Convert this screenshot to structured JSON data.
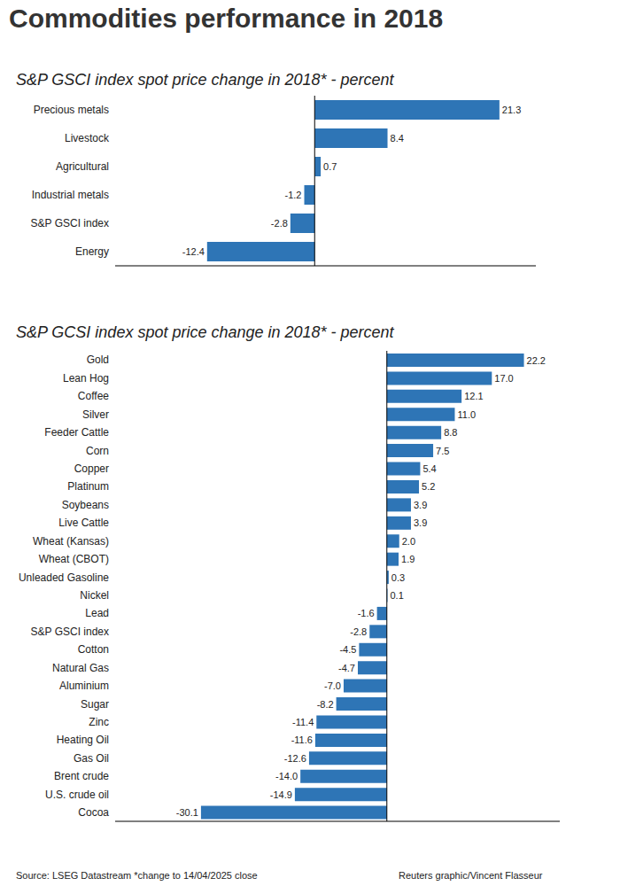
{
  "title": "Commodities performance in 2018",
  "source": "Source: LSEG Datastream *change to 14/04/2025 close",
  "credit": "Reuters graphic/Vincent Flasseur",
  "chart_data": [
    {
      "type": "bar",
      "orientation": "horizontal",
      "title": "S&P GSCI index spot price change in 2018* - percent",
      "categories": [
        "Precious metals",
        "Livestock",
        "Agricultural",
        "Industrial metals",
        "S&P GSCI index",
        "Energy"
      ],
      "values": [
        21.3,
        8.4,
        0.7,
        -1.2,
        -2.8,
        -12.4
      ],
      "value_labels": [
        "21.3",
        "8.4",
        "0.7",
        "-1.2",
        "-2.8",
        "-12.4"
      ],
      "color": "#2e75b6",
      "xlim": [
        -23,
        25.5
      ],
      "xticks": [
        0
      ],
      "tick_labels": "y",
      "data_labels": true,
      "grid": false
    },
    {
      "type": "bar",
      "orientation": "horizontal",
      "title": "S&P GCSI index spot price change in 2018* - percent",
      "categories": [
        "Gold",
        "Lean Hog",
        "Coffee",
        "Silver",
        "Feeder Cattle",
        "Corn",
        "Copper",
        "Platinum",
        "Soybeans",
        "Live Cattle",
        "Wheat (Kansas)",
        "Wheat (CBOT)",
        "Unleaded Gasoline",
        "Nickel",
        "Lead",
        "S&P GSCI index",
        "Cotton",
        "Natural Gas",
        "Aluminium",
        "Sugar",
        "Zinc",
        "Heating Oil",
        "Gas Oil",
        "Brent crude",
        "U.S. crude oil",
        "Cocoa"
      ],
      "values": [
        22.2,
        17.0,
        12.1,
        11.0,
        8.8,
        7.5,
        5.4,
        5.2,
        3.9,
        3.9,
        2.0,
        1.9,
        0.3,
        0.1,
        -1.6,
        -2.8,
        -4.5,
        -4.7,
        -7.0,
        -8.2,
        -11.4,
        -11.6,
        -12.6,
        -14.0,
        -14.9,
        -30.1
      ],
      "value_labels": [
        "22.2",
        "17.0",
        "12.1",
        "11.0",
        "8.8",
        "7.5",
        "5.4",
        "5.2",
        "3.9",
        "3.9",
        "2.0",
        "1.9",
        "0.3",
        "0.1",
        "-1.6",
        "-2.8",
        "-4.5",
        "-4.7",
        "-7.0",
        "-8.2",
        "-11.4",
        "-11.6",
        "-12.6",
        "-14.0",
        "-14.9",
        "-30.1"
      ],
      "color": "#2e75b6",
      "xlim": [
        -44,
        28
      ],
      "xticks": [
        0
      ],
      "tick_labels": "y",
      "data_labels": true,
      "grid": false
    }
  ]
}
